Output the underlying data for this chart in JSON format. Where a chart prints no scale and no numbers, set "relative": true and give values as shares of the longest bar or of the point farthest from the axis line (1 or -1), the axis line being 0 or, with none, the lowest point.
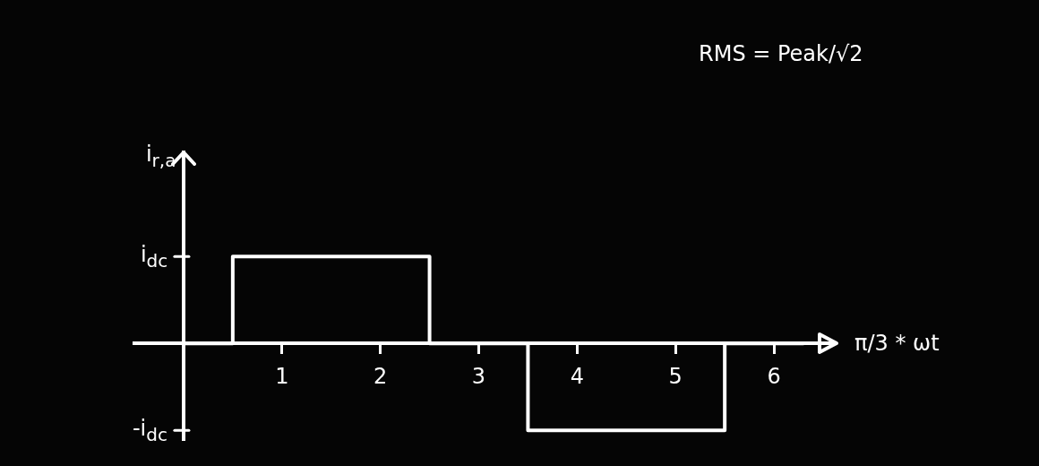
{
  "chart_data": {
    "type": "step",
    "xlabel": "π/3 * ωt",
    "ylabel": "i$_{r,a}$",
    "relative": true,
    "annotations": [
      "RMS = Peak/√2",
      "i$_{dc}$",
      "-i$_{dc}$"
    ],
    "x": [
      0,
      0.5,
      2.5,
      3.5,
      5.5,
      6.3
    ],
    "series": [
      {
        "color": "#ffffff",
        "values": [
          0,
          1,
          0,
          -1,
          0,
          0
        ]
      }
    ],
    "xlim": [
      -0.5,
      6.6
    ],
    "xticks": [
      1,
      2,
      3,
      4,
      5,
      6
    ]
  }
}
